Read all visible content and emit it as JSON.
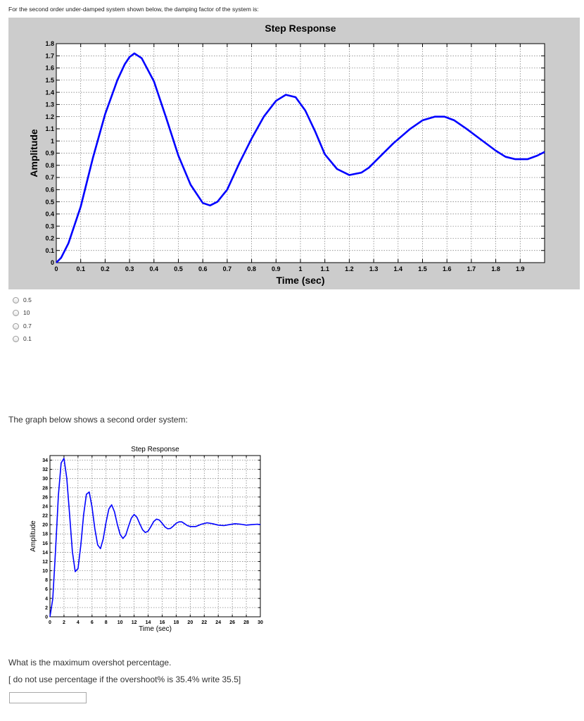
{
  "question1": {
    "prompt": "For the second order under-damped system shown below, the damping factor of the system is:",
    "options": [
      "0.5",
      "10",
      "0.7",
      "0.1"
    ]
  },
  "question2": {
    "intro": "The graph below shows a second order system:",
    "question": "What is the maximum overshot percentage.",
    "note": "[ do not use percentage if the overshoot% is 35.4% write 35.5]",
    "answer_value": ""
  },
  "colors": {
    "curve": "#0000ff",
    "figure_bg": "#cccccc",
    "axes_bg": "#ffffff",
    "grid": "#000000"
  },
  "chart_data": [
    {
      "type": "line",
      "title": "Step Response",
      "xlabel": "Time (sec)",
      "ylabel": "Amplitude",
      "xlim": [
        0,
        2
      ],
      "ylim": [
        0,
        1.8
      ],
      "xticks": [
        "0",
        "0.1",
        "0.2",
        "0.3",
        "0.4",
        "0.5",
        "0.6",
        "0.7",
        "0.8",
        "0.9",
        "1",
        "1.1",
        "1.2",
        "1.3",
        "1.4",
        "1.5",
        "1.6",
        "1.7",
        "1.8",
        "1.9"
      ],
      "yticks": [
        "0",
        "0.1",
        "0.2",
        "0.3",
        "0.4",
        "0.5",
        "0.6",
        "0.7",
        "0.8",
        "0.9",
        "1",
        "1.1",
        "1.2",
        "1.3",
        "1.4",
        "1.5",
        "1.6",
        "1.7",
        "1.8"
      ],
      "grid": true,
      "series": [
        {
          "x": [
            0,
            0.02,
            0.05,
            0.1,
            0.15,
            0.2,
            0.25,
            0.28,
            0.3,
            0.32,
            0.35,
            0.4,
            0.45,
            0.5,
            0.55,
            0.6,
            0.63,
            0.66,
            0.7,
            0.75,
            0.8,
            0.85,
            0.9,
            0.94,
            0.98,
            1.02,
            1.06,
            1.1,
            1.15,
            1.2,
            1.25,
            1.28,
            1.32,
            1.38,
            1.45,
            1.5,
            1.55,
            1.59,
            1.63,
            1.68,
            1.74,
            1.8,
            1.84,
            1.88,
            1.93,
            1.97,
            2.0
          ],
          "y": [
            0,
            0.04,
            0.16,
            0.46,
            0.86,
            1.22,
            1.5,
            1.63,
            1.69,
            1.72,
            1.68,
            1.49,
            1.19,
            0.88,
            0.64,
            0.49,
            0.47,
            0.5,
            0.6,
            0.82,
            1.02,
            1.2,
            1.33,
            1.38,
            1.36,
            1.25,
            1.08,
            0.89,
            0.77,
            0.72,
            0.74,
            0.78,
            0.86,
            0.98,
            1.1,
            1.17,
            1.2,
            1.2,
            1.17,
            1.1,
            1.01,
            0.92,
            0.87,
            0.85,
            0.85,
            0.88,
            0.91
          ]
        }
      ]
    },
    {
      "type": "line",
      "title": "Step Response",
      "xlabel": "Time (sec)",
      "ylabel": "Amplitude",
      "xlim": [
        0,
        30
      ],
      "ylim": [
        0,
        35
      ],
      "xticks": [
        "0",
        "2",
        "4",
        "6",
        "8",
        "10",
        "12",
        "14",
        "16",
        "18",
        "20",
        "22",
        "24",
        "26",
        "28",
        "30"
      ],
      "yticks": [
        "0",
        "2",
        "4",
        "6",
        "8",
        "10",
        "12",
        "14",
        "16",
        "18",
        "20",
        "22",
        "24",
        "26",
        "28",
        "30",
        "32",
        "34"
      ],
      "grid": true,
      "series": [
        {
          "x": [
            0,
            0.4,
            0.8,
            1.2,
            1.6,
            2.0,
            2.4,
            2.8,
            3.2,
            3.6,
            4.0,
            4.4,
            4.8,
            5.2,
            5.6,
            6.0,
            6.4,
            6.8,
            7.2,
            7.6,
            8.0,
            8.4,
            8.8,
            9.2,
            9.6,
            10.0,
            10.4,
            10.8,
            11.2,
            11.6,
            12.0,
            12.4,
            12.8,
            13.2,
            13.6,
            14.0,
            14.4,
            14.8,
            15.2,
            15.6,
            16.0,
            16.4,
            16.8,
            17.2,
            17.6,
            18.0,
            18.4,
            18.8,
            19.2,
            19.6,
            20.0,
            20.8,
            21.6,
            22.4,
            23.2,
            24.0,
            24.8,
            25.6,
            26.4,
            27.2,
            28.0,
            28.8,
            29.6,
            30.0
          ],
          "y": [
            0,
            3.9,
            14.6,
            26.4,
            33.4,
            34.4,
            30.1,
            22.2,
            14.1,
            9.8,
            10.5,
            15.6,
            22.1,
            26.6,
            27.1,
            23.8,
            19.1,
            15.6,
            14.8,
            16.9,
            20.5,
            23.4,
            24.3,
            22.8,
            20.1,
            17.9,
            17.0,
            17.7,
            19.6,
            21.4,
            22.2,
            21.6,
            20.2,
            18.9,
            18.3,
            18.6,
            19.6,
            20.7,
            21.2,
            21.0,
            20.3,
            19.5,
            19.1,
            19.2,
            19.7,
            20.3,
            20.6,
            20.6,
            20.2,
            19.8,
            19.6,
            19.6,
            20.1,
            20.4,
            20.2,
            19.9,
            19.8,
            20.0,
            20.2,
            20.1,
            19.9,
            20.0,
            20.1,
            20.0
          ]
        }
      ]
    }
  ]
}
